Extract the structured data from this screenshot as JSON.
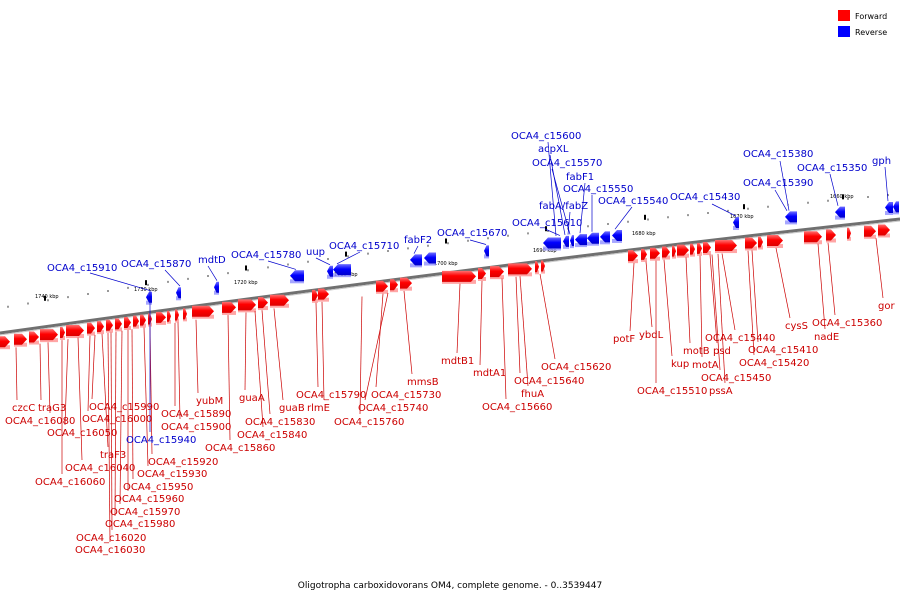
{
  "legend": [
    {
      "label": "Forward",
      "color": "#ff0000"
    },
    {
      "label": "Reverse",
      "color": "#0000ff"
    }
  ],
  "caption": "Oligotropha carboxidovorans OM4, complete genome. - 0..3539447",
  "colors": {
    "forward": "#ff0000",
    "forward_shade": "#ff9090",
    "forward_label": "#cc0000",
    "reverse": "#0000ff",
    "reverse_shade": "#9090ff",
    "reverse_label": "#0000cc",
    "backbone": "#707070"
  },
  "scale_labels": [
    "1740 kbp",
    "1730 kbp",
    "1720 kbp",
    "1710 kbp",
    "1700 kbp",
    "1690 kbp",
    "1680 kbp",
    "1670 kbp",
    "1660 kbp"
  ],
  "reverse_genes": [
    "OCA4_c15910",
    "OCA4_c15870",
    "mdtD",
    "OCA4_c15780",
    "uup",
    "OCA4_c15710",
    "fabF2",
    "OCA4_c15670",
    "OCA4_c15600",
    "acpXL",
    "OCA4_c15570",
    "fabF1",
    "OCA4_c15550",
    "fabA/fabZ",
    "OCA4_c15610",
    "OCA4_c15540",
    "OCA4_c15430",
    "OCA4_c15380",
    "OCA4_c15390",
    "OCA4_c15350",
    "gph",
    "OCA4_c15940"
  ],
  "forward_genes": [
    "czcC",
    "traG3",
    "OCA4_c16080",
    "OCA4_c15990",
    "OCA4_c16000",
    "OCA4_c16050",
    "OCA4_c15890",
    "OCA4_c15900",
    "yubM",
    "guaA",
    "guaB",
    "OCA4_c15830",
    "OCA4_c15840",
    "OCA4_c15860",
    "OCA4_c15790",
    "rlmE",
    "OCA4_c15730",
    "OCA4_c15740",
    "OCA4_c15760",
    "mmsB",
    "traF3",
    "OCA4_c15920",
    "OCA4_c15930",
    "OCA4_c16040",
    "OCA4_c16060",
    "OCA4_c15950",
    "OCA4_c15960",
    "OCA4_c15970",
    "OCA4_c15980",
    "OCA4_c16020",
    "OCA4_c16030",
    "mdtB1",
    "mdtA1",
    "fhuA",
    "OCA4_c15660",
    "OCA4_c15640",
    "OCA4_c15620",
    "potF",
    "ybdL",
    "kup",
    "OCA4_c15510",
    "motB",
    "motA",
    "pssA",
    "psd",
    "OCA4_c15440",
    "OCA4_c15450",
    "OCA4_c15410",
    "OCA4_c15420",
    "cysS",
    "nadE",
    "OCA4_c15360",
    "gor"
  ]
}
